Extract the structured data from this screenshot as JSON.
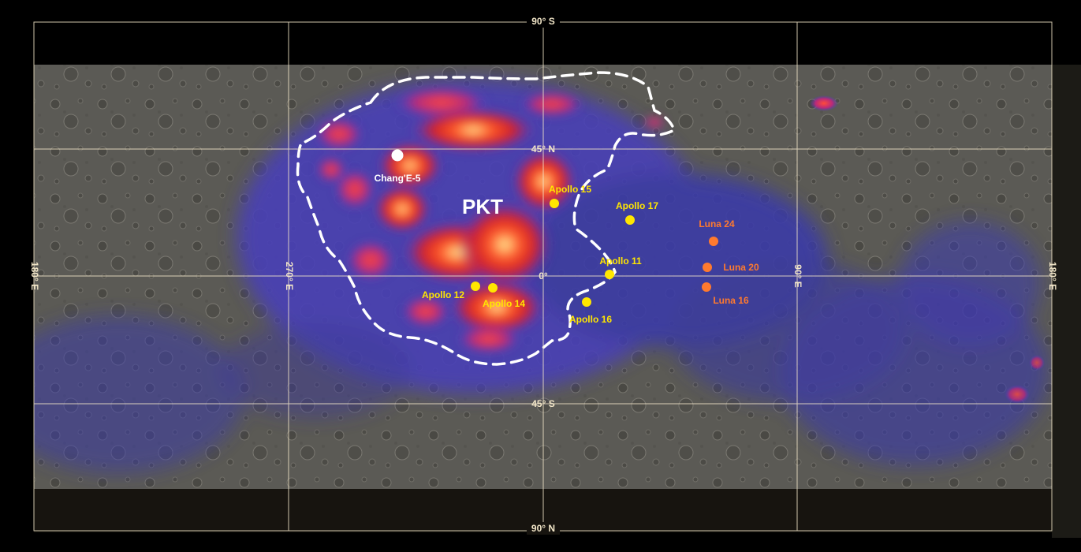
{
  "map": {
    "grid_labels": {
      "lat_top": "90° S",
      "lat_45n": "45° N",
      "lat_0": "0°",
      "lat_45s": "45° S",
      "lat_bottom": "90° N",
      "lon_left": "180° E",
      "lon_270": "270° E",
      "lon_90": "90° E",
      "lon_right": "180° E"
    },
    "region": {
      "label": "PKT"
    },
    "colors": {
      "apollo": "#ffe600",
      "luna": "#ff7a2e",
      "change": "#ffffff",
      "grid": "#f2e6c8"
    },
    "sites": [
      {
        "name": "Chang'E-5",
        "group": "change"
      },
      {
        "name": "Apollo 15",
        "group": "apollo"
      },
      {
        "name": "Apollo 17",
        "group": "apollo"
      },
      {
        "name": "Apollo 11",
        "group": "apollo"
      },
      {
        "name": "Apollo 12",
        "group": "apollo"
      },
      {
        "name": "Apollo 14",
        "group": "apollo"
      },
      {
        "name": "Apollo 16",
        "group": "apollo"
      },
      {
        "name": "Luna 24",
        "group": "luna"
      },
      {
        "name": "Luna 20",
        "group": "luna"
      },
      {
        "name": "Luna 16",
        "group": "luna"
      }
    ]
  }
}
